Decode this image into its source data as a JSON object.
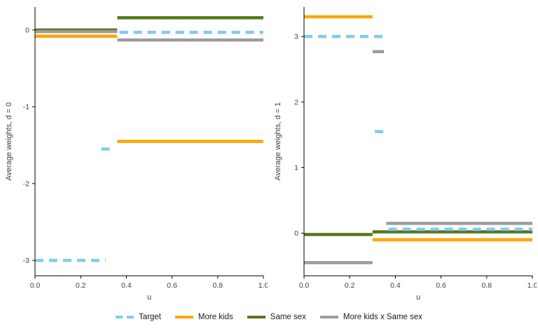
{
  "chart_data": [
    {
      "type": "line",
      "title": "",
      "xlabel": "u",
      "ylabel": "Average weights, d = 0",
      "xlim": [
        0,
        1
      ],
      "ylim": [
        -3.2,
        0.3
      ],
      "x_ticks": [
        0.0,
        0.2,
        0.4,
        0.6,
        0.8,
        1.0
      ],
      "x_tick_labels": [
        "0.0",
        "0.2",
        "0.4",
        "0.6",
        "0.8",
        "1.0"
      ],
      "y_ticks": [
        0,
        -1,
        -2,
        -3
      ],
      "y_tick_labels": [
        "0",
        "-1",
        "-2",
        "-3"
      ],
      "grid": false,
      "legend_position": "bottom",
      "series": [
        {
          "name": "Same sex",
          "color": "#55771C",
          "dash": false,
          "segments": [
            [
              0.0,
              0.36,
              0.0
            ],
            [
              0.36,
              1.0,
              0.16
            ]
          ]
        },
        {
          "name": "More kids",
          "color": "#FFA400",
          "dash": false,
          "segments": [
            [
              0.0,
              0.36,
              -0.08
            ],
            [
              0.36,
              1.0,
              -1.45
            ]
          ]
        },
        {
          "name": "More kids x Same sex",
          "color": "#9C9C9C",
          "dash": false,
          "segments": [
            [
              0.0,
              0.36,
              -0.02
            ],
            [
              0.36,
              1.0,
              -0.13
            ]
          ]
        },
        {
          "name": "Target",
          "color": "#85C9EC",
          "dash": true,
          "segments": [
            [
              0.0,
              0.31,
              -3.0
            ],
            [
              0.29,
              0.34,
              -1.55
            ],
            [
              0.37,
              1.0,
              -0.03
            ]
          ]
        }
      ]
    },
    {
      "type": "line",
      "title": "",
      "xlabel": "u",
      "ylabel": "Average weights, d = 1",
      "xlim": [
        0,
        1
      ],
      "ylim": [
        -0.65,
        3.45
      ],
      "x_ticks": [
        0.0,
        0.2,
        0.4,
        0.6,
        0.8,
        1.0
      ],
      "x_tick_labels": [
        "0.0",
        "0.2",
        "0.4",
        "0.6",
        "0.8",
        "1.0"
      ],
      "y_ticks": [
        0,
        1,
        2,
        3
      ],
      "y_tick_labels": [
        "0",
        "1",
        "2",
        "3"
      ],
      "grid": false,
      "legend_position": "bottom",
      "series": [
        {
          "name": "Same sex",
          "color": "#55771C",
          "dash": false,
          "segments": [
            [
              0.0,
              0.3,
              -0.02
            ],
            [
              0.3,
              1.0,
              0.02
            ]
          ]
        },
        {
          "name": "More kids",
          "color": "#FFA400",
          "dash": false,
          "segments": [
            [
              0.0,
              0.3,
              3.3
            ],
            [
              0.3,
              1.0,
              -0.1
            ]
          ]
        },
        {
          "name": "More kids x Same sex",
          "color": "#9C9C9C",
          "dash": false,
          "segments": [
            [
              0.0,
              0.3,
              -0.45
            ],
            [
              0.3,
              0.35,
              2.77
            ],
            [
              0.36,
              1.0,
              0.15
            ]
          ]
        },
        {
          "name": "Target",
          "color": "#85C9EC",
          "dash": true,
          "segments": [
            [
              0.0,
              0.35,
              3.0
            ],
            [
              0.31,
              0.35,
              1.55
            ],
            [
              0.37,
              1.0,
              0.06
            ]
          ]
        }
      ]
    }
  ],
  "legend": {
    "items": [
      {
        "label": "Target"
      },
      {
        "label": "More kids"
      },
      {
        "label": "Same sex"
      },
      {
        "label": "More kids x Same sex"
      }
    ]
  }
}
